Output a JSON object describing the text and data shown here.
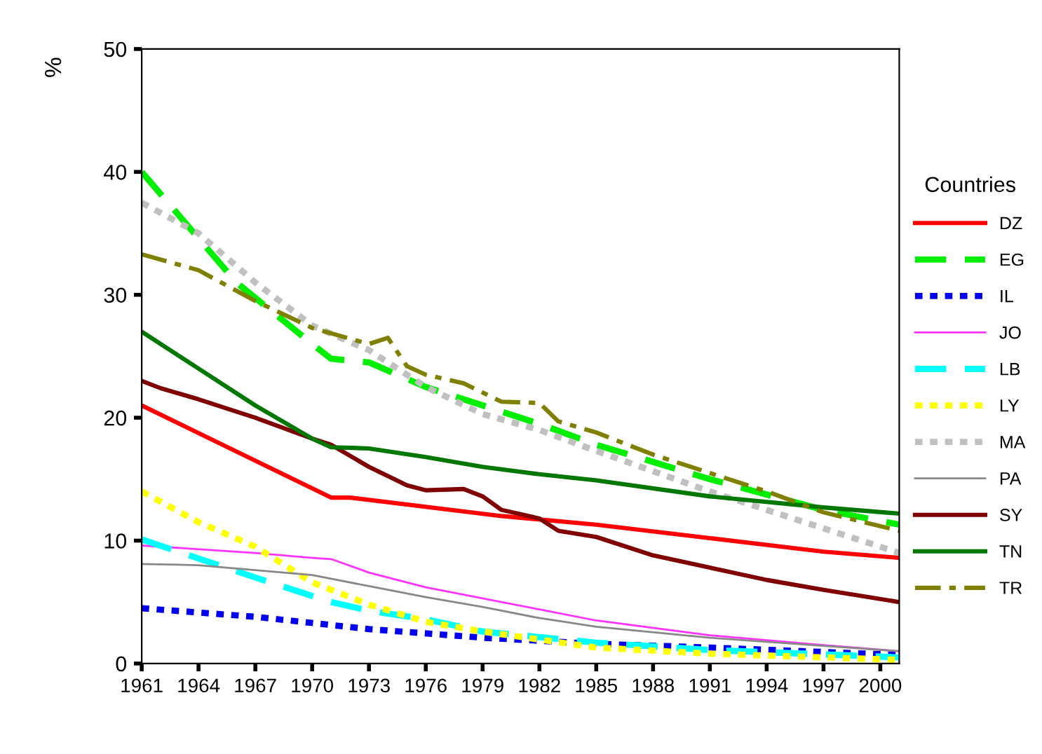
{
  "chart_data": {
    "type": "line",
    "ylabel": "%",
    "legend_title": "Countries",
    "legend": "right",
    "grid": false,
    "marker": "none",
    "xlim": [
      1961,
      2001
    ],
    "xticks": [
      1961,
      1964,
      1967,
      1970,
      1973,
      1976,
      1979,
      1982,
      1985,
      1988,
      1991,
      1994,
      1997,
      2000
    ],
    "ylim": [
      0,
      50
    ],
    "yticks": [
      0,
      10,
      20,
      30,
      40,
      50
    ],
    "series": [
      {
        "name": "DZ",
        "color": "#ff0000",
        "line_style": "solid",
        "x": [
          1961,
          1971,
          1972,
          1980,
          1985,
          1991,
          1997,
          2001
        ],
        "values": [
          21,
          13.5,
          13.5,
          12,
          11.3,
          10.2,
          9.1,
          8.6
        ]
      },
      {
        "name": "EG",
        "color": "#00ee00",
        "line_style": "dashed",
        "x": [
          1961,
          1966,
          1970,
          1971,
          1973,
          1976,
          1979,
          1982,
          1985,
          1991,
          1997,
          2001
        ],
        "values": [
          40,
          31,
          26,
          24.8,
          24.5,
          22.5,
          21,
          19.5,
          17.8,
          15,
          12.5,
          11.3
        ]
      },
      {
        "name": "IL",
        "color": "#0000ee",
        "line_style": "dotted",
        "x": [
          1961,
          1967,
          1973,
          1979,
          1985,
          1991,
          2001
        ],
        "values": [
          4.5,
          3.8,
          2.8,
          2.1,
          1.6,
          1.3,
          0.7
        ]
      },
      {
        "name": "JO",
        "color": "#ff33ff",
        "line_style": "solid",
        "x": [
          1961,
          1967,
          1970,
          1971,
          1973,
          1976,
          1979,
          1982,
          1985,
          1991,
          1997,
          2001
        ],
        "values": [
          9.6,
          9.0,
          8.6,
          8.5,
          7.4,
          6.2,
          5.3,
          4.4,
          3.5,
          2.3,
          1.5,
          1.0
        ]
      },
      {
        "name": "LB",
        "color": "#00ffff",
        "line_style": "dashed",
        "x": [
          1961,
          1967,
          1971,
          1973,
          1976,
          1979,
          1985,
          1991,
          2001
        ],
        "values": [
          10.1,
          7.0,
          5.0,
          4.3,
          3.6,
          2.6,
          1.7,
          1.1,
          0.5
        ]
      },
      {
        "name": "LY",
        "color": "#ffff00",
        "line_style": "dotted",
        "x": [
          1961,
          1964,
          1967,
          1970,
          1973,
          1976,
          1979,
          1985,
          1991,
          2001
        ],
        "values": [
          14,
          11.5,
          9.5,
          6.6,
          4.8,
          3.4,
          2.6,
          1.3,
          0.8,
          0.3
        ]
      },
      {
        "name": "MA",
        "color": "#c0c0c0",
        "line_style": "dotted",
        "x": [
          1961,
          1964,
          1967,
          1970,
          1973,
          1976,
          1979,
          1982,
          1985,
          1991,
          1997,
          2001
        ],
        "values": [
          37.5,
          35,
          31,
          27.5,
          25.5,
          22.5,
          20.3,
          19,
          17.3,
          14,
          11,
          9
        ]
      },
      {
        "name": "PA",
        "color": "#888888",
        "line_style": "solid",
        "x": [
          1961,
          1964,
          1967,
          1970,
          1973,
          1976,
          1979,
          1982,
          1985,
          1991,
          2001
        ],
        "values": [
          8.1,
          8.0,
          7.6,
          7.2,
          6.3,
          5.4,
          4.6,
          3.7,
          3.0,
          2.1,
          1.0
        ]
      },
      {
        "name": "SY",
        "color": "#800000",
        "line_style": "solid",
        "x": [
          1961,
          1962,
          1964,
          1967,
          1970,
          1971,
          1973,
          1975,
          1976,
          1978,
          1979,
          1980,
          1982,
          1983,
          1985,
          1988,
          1991,
          1994,
          1997,
          2001
        ],
        "values": [
          23,
          22.4,
          21.5,
          20,
          18.3,
          17.8,
          16,
          14.5,
          14.1,
          14.2,
          13.6,
          12.5,
          11.8,
          10.8,
          10.3,
          8.8,
          7.8,
          6.8,
          6.0,
          5.0
        ]
      },
      {
        "name": "TN",
        "color": "#007700",
        "line_style": "solid",
        "x": [
          1961,
          1964,
          1967,
          1970,
          1971,
          1973,
          1976,
          1979,
          1982,
          1985,
          1991,
          1997,
          2001
        ],
        "values": [
          27,
          24,
          21,
          18.3,
          17.6,
          17.5,
          16.8,
          16,
          15.4,
          14.9,
          13.6,
          12.7,
          12.2
        ]
      },
      {
        "name": "TR",
        "color": "#808000",
        "line_style": "dashdot",
        "x": [
          1961,
          1964,
          1967,
          1970,
          1973,
          1974,
          1975,
          1976,
          1978,
          1980,
          1982,
          1983,
          1985,
          1988,
          1991,
          1994,
          1997,
          2001
        ],
        "values": [
          33.3,
          32,
          29.5,
          27.3,
          26.0,
          26.5,
          24.2,
          23.5,
          22.8,
          21.3,
          21.2,
          19.7,
          18.8,
          17,
          15.5,
          14,
          12.3,
          10.8
        ]
      }
    ]
  }
}
